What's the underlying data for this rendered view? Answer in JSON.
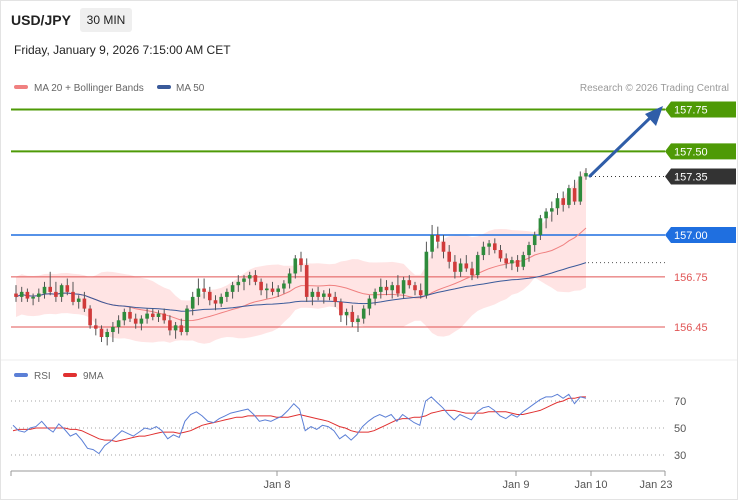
{
  "header": {
    "pair": "USD/JPY",
    "timeframe": "30 MIN",
    "datetime": "Friday, January 9, 2026 7:15:00 AM CET"
  },
  "legend": {
    "ma20_label": "MA 20 + Bollinger Bands",
    "ma50_label": "MA 50",
    "credit": "Research © 2026 Trading Central"
  },
  "levels": [
    {
      "value": 157.75,
      "label": "157.75",
      "kind": "target"
    },
    {
      "value": 157.5,
      "label": "157.50",
      "kind": "target"
    },
    {
      "value": 157.35,
      "label": "157.35",
      "kind": "last"
    },
    {
      "value": 157.0,
      "label": "157.00",
      "kind": "pivot"
    },
    {
      "value": 156.75,
      "label": "156.75",
      "kind": "support"
    },
    {
      "value": 156.45,
      "label": "156.45",
      "kind": "support"
    }
  ],
  "rsi_legend": {
    "rsi_label": "RSI",
    "ma_label": "9MA"
  },
  "rsi_ticks": [
    "70",
    "50",
    "30"
  ],
  "x_labels": [
    "Jan 8",
    "Jan 9",
    "Jan 10",
    "Jan 23"
  ],
  "colors": {
    "target": "#4e9a06",
    "last": "#333333",
    "pivot": "#1f6fe0",
    "support": "#e05555",
    "bull": "#2e8b3c",
    "bear": "#d03a3a",
    "ma20": "#f08080",
    "ma50": "#3a5a9a",
    "band": "#ffd9d9",
    "rsi": "#5b7fd6",
    "rsi_ma": "#e03030",
    "arrow": "#2f5da8"
  },
  "chart_data": [
    {
      "type": "candlestick",
      "title": "USD/JPY 30 MIN",
      "x_labels": [
        "Jan 8",
        "Jan 9",
        "Jan 10",
        "Jan 23"
      ],
      "ylim": [
        156.2,
        157.9
      ],
      "series": [
        {
          "name": "USD/JPY",
          "ohlc": [
            [
              156.65,
              156.7,
              156.6,
              156.63
            ],
            [
              156.63,
              156.69,
              156.6,
              156.66
            ],
            [
              156.66,
              156.68,
              156.6,
              156.62
            ],
            [
              156.62,
              156.65,
              156.58,
              156.63
            ],
            [
              156.63,
              156.68,
              156.6,
              156.65
            ],
            [
              156.65,
              156.72,
              156.62,
              156.69
            ],
            [
              156.69,
              156.78,
              156.64,
              156.66
            ],
            [
              156.66,
              156.72,
              156.6,
              156.63
            ],
            [
              156.63,
              156.71,
              156.6,
              156.7
            ],
            [
              156.7,
              156.74,
              156.64,
              156.66
            ],
            [
              156.66,
              156.72,
              156.58,
              156.6
            ],
            [
              156.6,
              156.64,
              156.56,
              156.62
            ],
            [
              156.62,
              156.66,
              156.54,
              156.56
            ],
            [
              156.56,
              156.58,
              156.44,
              156.46
            ],
            [
              156.46,
              156.5,
              156.4,
              156.44
            ],
            [
              156.44,
              156.46,
              156.36,
              156.39
            ],
            [
              156.39,
              156.44,
              156.34,
              156.42
            ],
            [
              156.42,
              156.48,
              156.36,
              156.45
            ],
            [
              156.45,
              156.52,
              156.41,
              156.49
            ],
            [
              156.49,
              156.56,
              156.46,
              156.54
            ],
            [
              156.54,
              156.57,
              156.48,
              156.5
            ],
            [
              156.5,
              156.53,
              156.44,
              156.47
            ],
            [
              156.47,
              156.52,
              156.43,
              156.5
            ],
            [
              156.5,
              156.56,
              156.47,
              156.53
            ],
            [
              156.53,
              156.56,
              156.49,
              156.51
            ],
            [
              156.51,
              156.55,
              156.48,
              156.53
            ],
            [
              156.53,
              156.56,
              156.47,
              156.49
            ],
            [
              156.49,
              156.52,
              156.4,
              156.43
            ],
            [
              156.43,
              156.48,
              156.38,
              156.46
            ],
            [
              156.46,
              156.5,
              156.4,
              156.42
            ],
            [
              156.42,
              156.58,
              156.4,
              156.56
            ],
            [
              156.56,
              156.66,
              156.52,
              156.63
            ],
            [
              156.63,
              156.74,
              156.58,
              156.68
            ],
            [
              156.68,
              156.74,
              156.62,
              156.66
            ],
            [
              156.66,
              156.69,
              156.58,
              156.61
            ],
            [
              156.61,
              156.64,
              156.55,
              156.59
            ],
            [
              156.59,
              156.65,
              156.57,
              156.63
            ],
            [
              156.63,
              156.68,
              156.6,
              156.66
            ],
            [
              156.66,
              156.72,
              156.62,
              156.7
            ],
            [
              156.7,
              156.76,
              156.66,
              156.72
            ],
            [
              156.72,
              156.76,
              156.67,
              156.74
            ],
            [
              156.74,
              156.78,
              156.7,
              156.76
            ],
            [
              156.76,
              156.79,
              156.7,
              156.72
            ],
            [
              156.72,
              156.74,
              156.64,
              156.67
            ],
            [
              156.67,
              156.71,
              156.62,
              156.68
            ],
            [
              156.68,
              156.72,
              156.64,
              156.66
            ],
            [
              156.66,
              156.7,
              156.63,
              156.68
            ],
            [
              156.68,
              156.73,
              156.65,
              156.71
            ],
            [
              156.71,
              156.8,
              156.68,
              156.77
            ],
            [
              156.77,
              156.88,
              156.74,
              156.86
            ],
            [
              156.86,
              156.9,
              156.78,
              156.82
            ],
            [
              156.82,
              156.86,
              156.6,
              156.63
            ],
            [
              156.63,
              156.68,
              156.58,
              156.66
            ],
            [
              156.66,
              156.69,
              156.61,
              156.63
            ],
            [
              156.63,
              156.67,
              156.59,
              156.65
            ],
            [
              156.65,
              156.68,
              156.61,
              156.63
            ],
            [
              156.63,
              156.66,
              156.57,
              156.6
            ],
            [
              156.6,
              156.62,
              156.48,
              156.52
            ],
            [
              156.52,
              156.56,
              156.46,
              156.54
            ],
            [
              156.54,
              156.58,
              156.45,
              156.48
            ],
            [
              156.48,
              156.52,
              156.42,
              156.5
            ],
            [
              156.5,
              156.58,
              156.47,
              156.56
            ],
            [
              156.56,
              156.64,
              156.52,
              156.62
            ],
            [
              156.62,
              156.68,
              156.58,
              156.66
            ],
            [
              156.66,
              156.74,
              156.62,
              156.69
            ],
            [
              156.69,
              156.73,
              156.64,
              156.67
            ],
            [
              156.67,
              156.72,
              156.62,
              156.7
            ],
            [
              156.7,
              156.76,
              156.63,
              156.65
            ],
            [
              156.65,
              156.75,
              156.62,
              156.73
            ],
            [
              156.73,
              156.76,
              156.68,
              156.7
            ],
            [
              156.7,
              156.72,
              156.64,
              156.67
            ],
            [
              156.67,
              156.71,
              156.62,
              156.64
            ],
            [
              156.64,
              156.96,
              156.62,
              156.9
            ],
            [
              156.9,
              157.06,
              156.86,
              157.0
            ],
            [
              157.0,
              157.05,
              156.92,
              156.96
            ],
            [
              156.96,
              157.0,
              156.86,
              156.9
            ],
            [
              156.9,
              156.94,
              156.8,
              156.84
            ],
            [
              156.84,
              156.88,
              156.74,
              156.78
            ],
            [
              156.78,
              156.86,
              156.75,
              156.83
            ],
            [
              156.83,
              156.88,
              156.78,
              156.8
            ],
            [
              156.8,
              156.84,
              156.73,
              156.76
            ],
            [
              156.76,
              156.9,
              156.74,
              156.88
            ],
            [
              156.88,
              156.96,
              156.85,
              156.93
            ],
            [
              156.93,
              156.97,
              156.88,
              156.95
            ],
            [
              156.95,
              156.98,
              156.89,
              156.91
            ],
            [
              156.91,
              156.94,
              156.84,
              156.86
            ],
            [
              156.86,
              156.89,
              156.8,
              156.83
            ],
            [
              156.83,
              156.87,
              156.79,
              156.85
            ],
            [
              156.85,
              156.88,
              156.78,
              156.81
            ],
            [
              156.81,
              156.9,
              156.79,
              156.88
            ],
            [
              156.88,
              156.96,
              156.84,
              156.94
            ],
            [
              156.94,
              157.02,
              156.9,
              157.0
            ],
            [
              157.0,
              157.12,
              156.97,
              157.1
            ],
            [
              157.1,
              157.16,
              157.04,
              157.14
            ],
            [
              157.14,
              157.2,
              157.08,
              157.16
            ],
            [
              157.16,
              157.25,
              157.12,
              157.22
            ],
            [
              157.22,
              157.26,
              157.14,
              157.18
            ],
            [
              157.18,
              157.3,
              157.16,
              157.28
            ],
            [
              157.28,
              157.33,
              157.18,
              157.2
            ],
            [
              157.2,
              157.38,
              157.18,
              157.35
            ],
            [
              157.35,
              157.4,
              157.33,
              157.37
            ]
          ]
        }
      ],
      "levels": [
        157.75,
        157.5,
        157.35,
        157.0,
        156.75,
        156.45
      ]
    },
    {
      "type": "line",
      "title": "RSI",
      "ylim": [
        20,
        80
      ],
      "yticks": [
        70,
        50,
        30
      ],
      "series": [
        {
          "name": "RSI",
          "values": [
            52,
            48,
            47,
            50,
            51,
            55,
            50,
            47,
            53,
            49,
            44,
            46,
            41,
            35,
            34,
            31,
            37,
            40,
            44,
            48,
            46,
            44,
            47,
            50,
            49,
            51,
            48,
            42,
            45,
            43,
            55,
            60,
            62,
            59,
            55,
            54,
            57,
            59,
            61,
            62,
            63,
            64,
            60,
            55,
            56,
            55,
            57,
            59,
            63,
            68,
            64,
            48,
            51,
            49,
            52,
            51,
            48,
            42,
            45,
            41,
            45,
            51,
            55,
            58,
            60,
            58,
            60,
            55,
            60,
            57,
            54,
            52,
            70,
            73,
            69,
            65,
            60,
            56,
            60,
            58,
            56,
            62,
            65,
            66,
            63,
            59,
            57,
            60,
            58,
            62,
            65,
            68,
            71,
            73,
            73,
            75,
            72,
            75,
            68,
            73,
            72
          ]
        },
        {
          "name": "9MA",
          "values": [
            48,
            49,
            49,
            49,
            50,
            50,
            50,
            50,
            50,
            50,
            49,
            49,
            48,
            46,
            44,
            42,
            41,
            41,
            40,
            41,
            42,
            43,
            44,
            44,
            45,
            46,
            47,
            47,
            47,
            46,
            47,
            48,
            50,
            52,
            53,
            54,
            55,
            56,
            57,
            58,
            58,
            59,
            59,
            59,
            59,
            59,
            58,
            58,
            58,
            59,
            60,
            59,
            58,
            57,
            56,
            55,
            53,
            51,
            50,
            48,
            47,
            47,
            47,
            48,
            50,
            52,
            54,
            56,
            57,
            57,
            58,
            58,
            59,
            61,
            62,
            63,
            63,
            63,
            62,
            61,
            61,
            61,
            61,
            62,
            62,
            62,
            62,
            61,
            60,
            60,
            61,
            62,
            63,
            65,
            67,
            69,
            70,
            72,
            72,
            73,
            73
          ]
        }
      ]
    }
  ]
}
